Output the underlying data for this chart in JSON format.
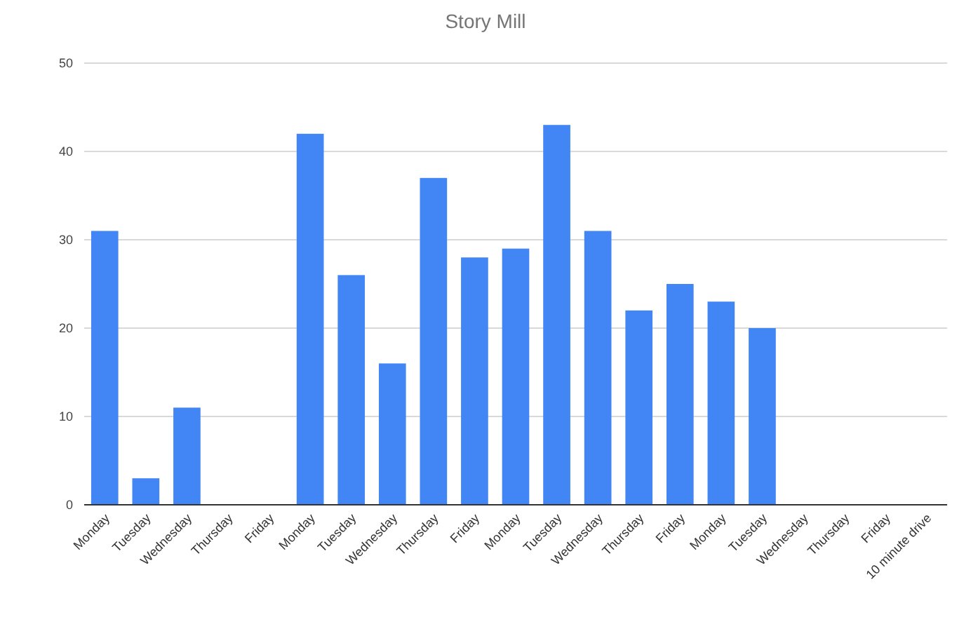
{
  "chart_data": {
    "type": "bar",
    "title": "Story Mill",
    "categories": [
      "Monday",
      "Tuesday",
      "Wednesday",
      "Thursday",
      "Friday",
      "Monday",
      "Tuesday",
      "Wednesday",
      "Thursday",
      "Friday",
      "Monday",
      "Tuesday",
      "Wednesday",
      "Thursday",
      "Friday",
      "Monday",
      "Tuesday",
      "Wednesday",
      "Thursday",
      "Friday",
      "10 minute drive"
    ],
    "values": [
      31,
      3,
      11,
      null,
      null,
      42,
      26,
      16,
      37,
      28,
      29,
      43,
      31,
      22,
      25,
      23,
      20,
      null,
      null,
      null,
      null
    ],
    "color": "#4285f4",
    "ylim": [
      0,
      50
    ],
    "yticks": [
      0,
      10,
      20,
      30,
      40,
      50
    ],
    "grid": "y"
  }
}
